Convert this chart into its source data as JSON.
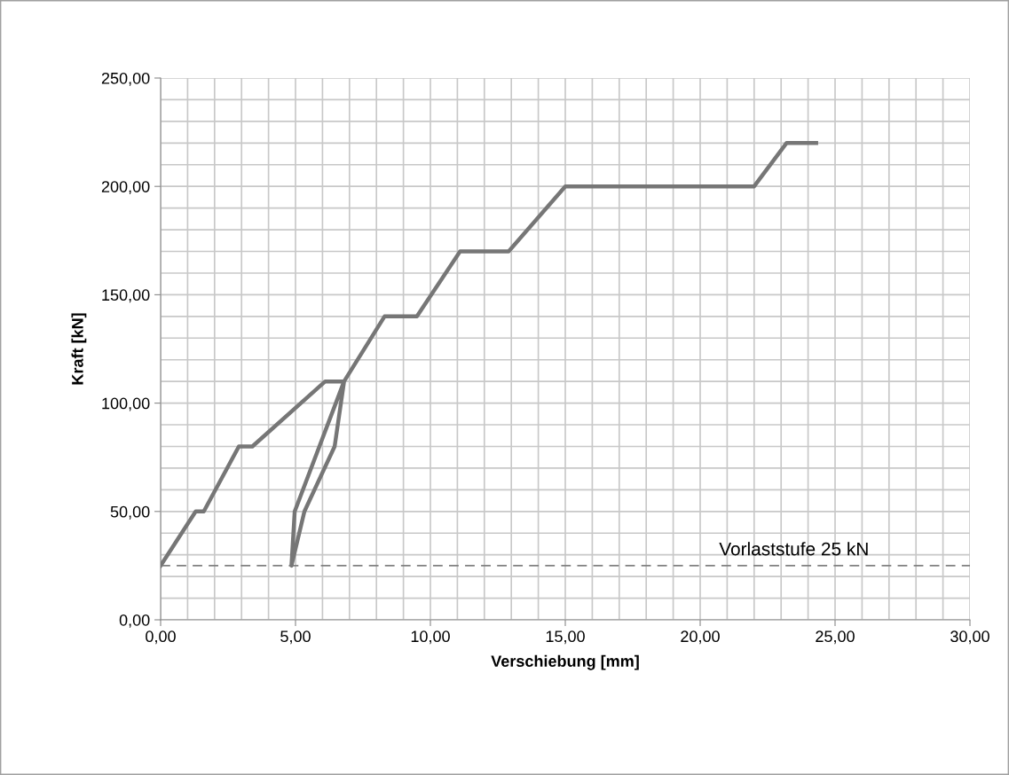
{
  "chart_data": {
    "type": "line",
    "xlabel": "Verschiebung [mm]",
    "ylabel": "Kraft [kN]",
    "x": [
      0,
      1.3,
      1.6,
      2.9,
      3.4,
      6.1,
      6.8,
      6.45,
      5.33,
      4.85,
      4.97,
      6.8,
      8.3,
      9.5,
      11.1,
      12.9,
      15.0,
      22.0,
      23.2,
      24.3
    ],
    "series": [
      {
        "color": "#767676",
        "values": [
          25,
          50,
          50,
          80,
          80,
          110,
          110,
          80,
          50,
          25,
          50,
          110,
          140,
          140,
          170,
          170,
          200,
          200,
          220,
          220
        ]
      }
    ],
    "xlim": [
      0,
      30
    ],
    "ylim": [
      0,
      250
    ],
    "xticks": [
      {
        "value": 0,
        "label": "0,00"
      },
      {
        "value": 1,
        "label": null
      },
      {
        "value": 2,
        "label": null
      },
      {
        "value": 3,
        "label": null
      },
      {
        "value": 4,
        "label": null
      },
      {
        "value": 5,
        "label": "5,00"
      },
      {
        "value": 6,
        "label": null
      },
      {
        "value": 7,
        "label": null
      },
      {
        "value": 8,
        "label": null
      },
      {
        "value": 9,
        "label": null
      },
      {
        "value": 10,
        "label": "10,00"
      },
      {
        "value": 11,
        "label": null
      },
      {
        "value": 12,
        "label": null
      },
      {
        "value": 13,
        "label": null
      },
      {
        "value": 14,
        "label": null
      },
      {
        "value": 15,
        "label": "15,00"
      },
      {
        "value": 16,
        "label": null
      },
      {
        "value": 17,
        "label": null
      },
      {
        "value": 18,
        "label": null
      },
      {
        "value": 19,
        "label": null
      },
      {
        "value": 20,
        "label": "20,00"
      },
      {
        "value": 21,
        "label": null
      },
      {
        "value": 22,
        "label": null
      },
      {
        "value": 23,
        "label": null
      },
      {
        "value": 24,
        "label": null
      },
      {
        "value": 25,
        "label": "25,00"
      },
      {
        "value": 26,
        "label": null
      },
      {
        "value": 27,
        "label": null
      },
      {
        "value": 28,
        "label": null
      },
      {
        "value": 29,
        "label": null
      },
      {
        "value": 30,
        "label": "30,00"
      }
    ],
    "yticks": [
      {
        "value": 0,
        "label": "0,00"
      },
      {
        "value": 10,
        "label": null
      },
      {
        "value": 20,
        "label": null
      },
      {
        "value": 30,
        "label": null
      },
      {
        "value": 40,
        "label": null
      },
      {
        "value": 50,
        "label": "50,00"
      },
      {
        "value": 60,
        "label": null
      },
      {
        "value": 70,
        "label": null
      },
      {
        "value": 80,
        "label": null
      },
      {
        "value": 90,
        "label": null
      },
      {
        "value": 100,
        "label": "100,00"
      },
      {
        "value": 110,
        "label": null
      },
      {
        "value": 120,
        "label": null
      },
      {
        "value": 130,
        "label": null
      },
      {
        "value": 140,
        "label": null
      },
      {
        "value": 150,
        "label": "150,00"
      },
      {
        "value": 160,
        "label": null
      },
      {
        "value": 170,
        "label": null
      },
      {
        "value": 180,
        "label": null
      },
      {
        "value": 190,
        "label": null
      },
      {
        "value": 200,
        "label": "200,00"
      },
      {
        "value": 210,
        "label": null
      },
      {
        "value": 220,
        "label": null
      },
      {
        "value": 230,
        "label": null
      },
      {
        "value": 240,
        "label": null
      },
      {
        "value": 250,
        "label": "250,00"
      }
    ],
    "grid": true,
    "ref_lines": [
      {
        "axis": "y",
        "value": 25,
        "label": "Vorlaststufe 25 kN",
        "color": "#808080",
        "line_style": "dashed"
      }
    ]
  }
}
